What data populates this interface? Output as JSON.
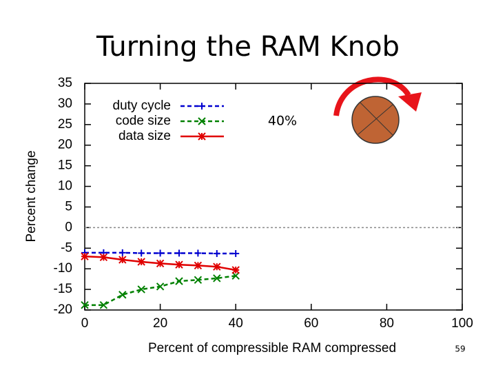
{
  "title": "Turning the RAM Knob",
  "slide_number": "59",
  "chart_data": {
    "type": "line",
    "xlabel": "Percent of compressible RAM compressed",
    "ylabel": "Percent change",
    "annotation": "40%",
    "x": [
      0,
      5,
      10,
      15,
      20,
      25,
      30,
      35,
      40
    ],
    "series": [
      {
        "name": "duty cycle",
        "color": "#0000d0",
        "marker": "plus",
        "values": [
          -6.1,
          -6.1,
          -6.1,
          -6.2,
          -6.2,
          -6.2,
          -6.2,
          -6.3,
          -6.3
        ]
      },
      {
        "name": "code size",
        "color": "#008000",
        "marker": "cross",
        "values": [
          -18.8,
          -18.8,
          -16.3,
          -15,
          -14.3,
          -13,
          -12.7,
          -12.3,
          -11.7
        ]
      },
      {
        "name": "data size",
        "color": "#e00000",
        "marker": "star",
        "values": [
          -7,
          -7.2,
          -7.8,
          -8.3,
          -8.7,
          -9,
          -9.2,
          -9.5,
          -10.3
        ]
      }
    ],
    "xlim": [
      0,
      100
    ],
    "xticks": [
      0,
      20,
      40,
      60,
      80,
      100
    ],
    "ylim": [
      -20,
      35
    ],
    "yticks": [
      -20,
      -15,
      -10,
      -5,
      0,
      5,
      10,
      15,
      20,
      25,
      30,
      35
    ],
    "zero_line": true,
    "legend": "upper-left"
  }
}
